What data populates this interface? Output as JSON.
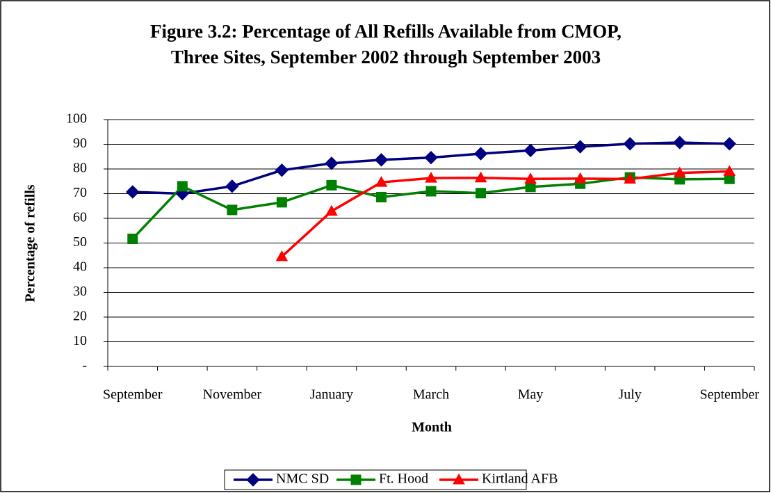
{
  "chart_data": {
    "type": "line",
    "title": [
      "Figure 3.2: Percentage of All Refills Available from CMOP,",
      "Three Sites, September 2002 through September 2003"
    ],
    "x_label": "Month",
    "y_label": "Percentage of refills",
    "categories": [
      "September",
      null,
      "November",
      null,
      "January",
      null,
      "March",
      null,
      "May",
      null,
      "July",
      null,
      "September"
    ],
    "series": [
      {
        "name": "NMC SD",
        "color": "#000080",
        "marker": "diamond",
        "values": [
          70.7,
          70,
          73,
          79.5,
          82.3,
          83.7,
          84.6,
          86.2,
          87.5,
          89,
          90.2,
          90.7,
          90.2
        ]
      },
      {
        "name": "Ft. Hood",
        "color": "#008000",
        "marker": "square",
        "values": [
          51.7,
          73,
          63.4,
          66.5,
          73.4,
          68.6,
          71,
          70.2,
          72.7,
          74,
          76.6,
          75.8,
          76
        ]
      },
      {
        "name": "Kirtland AFB",
        "color": "#ff0000",
        "marker": "triangle",
        "values": [
          null,
          null,
          null,
          44.5,
          62.9,
          74.6,
          76.3,
          76.4,
          76,
          76.1,
          75.9,
          78.4,
          79
        ]
      }
    ],
    "ylim": [
      0,
      100
    ],
    "yticks": [
      {
        "value": 0,
        "label": "-"
      },
      10,
      20,
      30,
      40,
      50,
      60,
      70,
      80,
      90,
      100
    ],
    "grid": true,
    "legend": "bottom"
  }
}
